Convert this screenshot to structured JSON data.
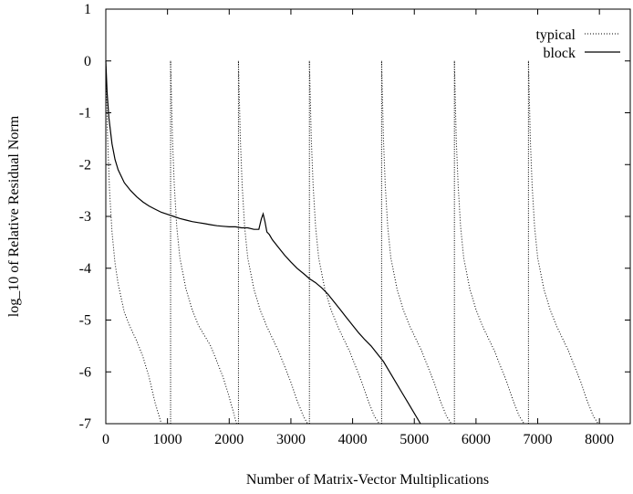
{
  "chart_data": {
    "type": "line",
    "title": "",
    "xlabel": "Number of Matrix-Vector Multiplications",
    "ylabel": "log_10 of Relative Residual Norm",
    "xlim": [
      0,
      8500
    ],
    "ylim": [
      -7,
      1
    ],
    "xticks": [
      0,
      1000,
      2000,
      3000,
      4000,
      5000,
      6000,
      7000,
      8000
    ],
    "yticks": [
      1,
      0,
      -1,
      -2,
      -3,
      -4,
      -5,
      -6,
      -7
    ],
    "grid": false,
    "legend_position": "top-right",
    "series": [
      {
        "name": "typical",
        "style": "dotted",
        "color": "#000000",
        "cycles": [
          {
            "restart_x": 0,
            "points": [
              [
                0,
                0
              ],
              [
                30,
                -1.5
              ],
              [
                60,
                -2.5
              ],
              [
                100,
                -3.3
              ],
              [
                150,
                -3.9
              ],
              [
                200,
                -4.3
              ],
              [
                300,
                -4.85
              ],
              [
                400,
                -5.15
              ],
              [
                500,
                -5.4
              ],
              [
                600,
                -5.7
              ],
              [
                700,
                -6.1
              ],
              [
                800,
                -6.6
              ],
              [
                900,
                -7
              ]
            ]
          },
          {
            "restart_x": 1050,
            "points": [
              [
                1050,
                0
              ],
              [
                1080,
                -1.5
              ],
              [
                1110,
                -2.4
              ],
              [
                1150,
                -3.2
              ],
              [
                1200,
                -3.8
              ],
              [
                1300,
                -4.4
              ],
              [
                1400,
                -4.8
              ],
              [
                1500,
                -5.1
              ],
              [
                1600,
                -5.3
              ],
              [
                1700,
                -5.5
              ],
              [
                1800,
                -5.8
              ],
              [
                1900,
                -6.1
              ],
              [
                1980,
                -6.4
              ],
              [
                2050,
                -6.7
              ],
              [
                2120,
                -7
              ]
            ]
          },
          {
            "restart_x": 2150,
            "points": [
              [
                2150,
                0
              ],
              [
                2180,
                -1.5
              ],
              [
                2210,
                -2.4
              ],
              [
                2250,
                -3.2
              ],
              [
                2300,
                -3.8
              ],
              [
                2400,
                -4.4
              ],
              [
                2500,
                -4.8
              ],
              [
                2600,
                -5.1
              ],
              [
                2700,
                -5.35
              ],
              [
                2800,
                -5.6
              ],
              [
                2900,
                -5.9
              ],
              [
                3000,
                -6.2
              ],
              [
                3100,
                -6.55
              ],
              [
                3200,
                -6.85
              ],
              [
                3270,
                -7
              ]
            ]
          },
          {
            "restart_x": 3300,
            "points": [
              [
                3300,
                0
              ],
              [
                3330,
                -1.5
              ],
              [
                3360,
                -2.4
              ],
              [
                3400,
                -3.2
              ],
              [
                3450,
                -3.8
              ],
              [
                3550,
                -4.4
              ],
              [
                3650,
                -4.8
              ],
              [
                3750,
                -5.1
              ],
              [
                3850,
                -5.35
              ],
              [
                3950,
                -5.6
              ],
              [
                4050,
                -5.9
              ],
              [
                4150,
                -6.2
              ],
              [
                4250,
                -6.55
              ],
              [
                4350,
                -6.85
              ],
              [
                4430,
                -7
              ]
            ]
          },
          {
            "restart_x": 4470,
            "points": [
              [
                4470,
                0
              ],
              [
                4500,
                -1.5
              ],
              [
                4530,
                -2.4
              ],
              [
                4570,
                -3.2
              ],
              [
                4620,
                -3.8
              ],
              [
                4720,
                -4.4
              ],
              [
                4820,
                -4.8
              ],
              [
                4920,
                -5.1
              ],
              [
                5020,
                -5.35
              ],
              [
                5120,
                -5.6
              ],
              [
                5220,
                -5.9
              ],
              [
                5320,
                -6.2
              ],
              [
                5420,
                -6.55
              ],
              [
                5520,
                -6.85
              ],
              [
                5600,
                -7
              ]
            ]
          },
          {
            "restart_x": 5650,
            "points": [
              [
                5650,
                0
              ],
              [
                5680,
                -1.5
              ],
              [
                5710,
                -2.4
              ],
              [
                5750,
                -3.2
              ],
              [
                5800,
                -3.8
              ],
              [
                5900,
                -4.4
              ],
              [
                6000,
                -4.8
              ],
              [
                6100,
                -5.1
              ],
              [
                6200,
                -5.35
              ],
              [
                6300,
                -5.6
              ],
              [
                6400,
                -5.9
              ],
              [
                6500,
                -6.2
              ],
              [
                6600,
                -6.55
              ],
              [
                6700,
                -6.85
              ],
              [
                6780,
                -7
              ]
            ]
          },
          {
            "restart_x": 6850,
            "points": [
              [
                6850,
                0
              ],
              [
                6880,
                -1.5
              ],
              [
                6910,
                -2.4
              ],
              [
                6950,
                -3.2
              ],
              [
                7000,
                -3.8
              ],
              [
                7100,
                -4.4
              ],
              [
                7200,
                -4.8
              ],
              [
                7300,
                -5.1
              ],
              [
                7400,
                -5.35
              ],
              [
                7500,
                -5.6
              ],
              [
                7600,
                -5.9
              ],
              [
                7700,
                -6.2
              ],
              [
                7800,
                -6.55
              ],
              [
                7900,
                -6.85
              ],
              [
                7980,
                -7
              ]
            ]
          }
        ]
      },
      {
        "name": "block",
        "style": "solid",
        "color": "#000000",
        "points": [
          [
            0,
            0
          ],
          [
            20,
            -0.6
          ],
          [
            50,
            -1.1
          ],
          [
            100,
            -1.6
          ],
          [
            150,
            -1.9
          ],
          [
            200,
            -2.1
          ],
          [
            300,
            -2.35
          ],
          [
            400,
            -2.5
          ],
          [
            500,
            -2.62
          ],
          [
            600,
            -2.72
          ],
          [
            700,
            -2.8
          ],
          [
            800,
            -2.86
          ],
          [
            900,
            -2.92
          ],
          [
            1000,
            -2.96
          ],
          [
            1100,
            -3.0
          ],
          [
            1200,
            -3.04
          ],
          [
            1300,
            -3.07
          ],
          [
            1400,
            -3.1
          ],
          [
            1500,
            -3.12
          ],
          [
            1600,
            -3.14
          ],
          [
            1700,
            -3.16
          ],
          [
            1800,
            -3.18
          ],
          [
            1900,
            -3.19
          ],
          [
            2000,
            -3.2
          ],
          [
            2100,
            -3.2
          ],
          [
            2200,
            -3.22
          ],
          [
            2300,
            -3.22
          ],
          [
            2400,
            -3.25
          ],
          [
            2480,
            -3.25
          ],
          [
            2520,
            -3.05
          ],
          [
            2550,
            -2.95
          ],
          [
            2580,
            -3.1
          ],
          [
            2610,
            -3.3
          ],
          [
            2650,
            -3.35
          ],
          [
            2700,
            -3.45
          ],
          [
            2800,
            -3.6
          ],
          [
            2900,
            -3.75
          ],
          [
            3000,
            -3.88
          ],
          [
            3100,
            -4.0
          ],
          [
            3200,
            -4.1
          ],
          [
            3300,
            -4.2
          ],
          [
            3400,
            -4.28
          ],
          [
            3500,
            -4.38
          ],
          [
            3600,
            -4.5
          ],
          [
            3700,
            -4.65
          ],
          [
            3800,
            -4.8
          ],
          [
            3900,
            -4.95
          ],
          [
            4000,
            -5.1
          ],
          [
            4100,
            -5.25
          ],
          [
            4200,
            -5.38
          ],
          [
            4300,
            -5.5
          ],
          [
            4400,
            -5.65
          ],
          [
            4500,
            -5.8
          ],
          [
            4600,
            -6.0
          ],
          [
            4700,
            -6.2
          ],
          [
            4800,
            -6.4
          ],
          [
            4900,
            -6.6
          ],
          [
            5000,
            -6.8
          ],
          [
            5100,
            -7.0
          ]
        ]
      }
    ]
  }
}
